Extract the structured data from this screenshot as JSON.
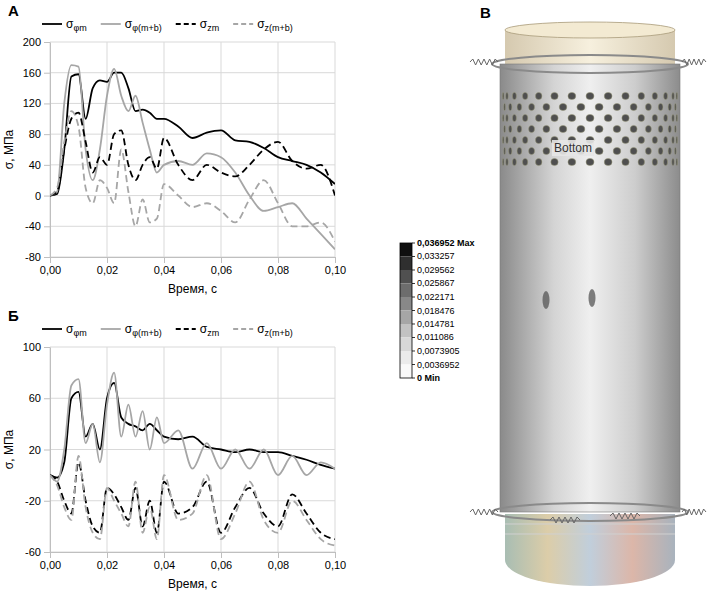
{
  "chart_data": [
    {
      "type": "line",
      "panel": "А",
      "x": [
        0,
        0.0025,
        0.005,
        0.0075,
        0.01,
        0.0125,
        0.015,
        0.0175,
        0.02,
        0.0225,
        0.025,
        0.0275,
        0.03,
        0.0325,
        0.035,
        0.0375,
        0.04,
        0.045,
        0.05,
        0.055,
        0.06,
        0.065,
        0.07,
        0.075,
        0.08,
        0.085,
        0.09,
        0.095,
        0.1
      ],
      "series": [
        {
          "name": "σφm",
          "color": "#000000",
          "line_style": "solid",
          "values": [
            0,
            2,
            60,
            155,
            158,
            100,
            140,
            150,
            148,
            160,
            160,
            140,
            110,
            112,
            108,
            100,
            100,
            90,
            75,
            82,
            85,
            72,
            70,
            62,
            50,
            45,
            40,
            30,
            15
          ]
        },
        {
          "name": "σφ(m+b)",
          "color": "#a6a6a6",
          "line_style": "solid",
          "values": [
            0,
            5,
            120,
            170,
            168,
            60,
            20,
            60,
            130,
            165,
            130,
            110,
            130,
            95,
            60,
            30,
            40,
            45,
            40,
            55,
            50,
            30,
            0,
            -20,
            -15,
            -10,
            -30,
            -50,
            -70
          ]
        },
        {
          "name": "σzm",
          "color": "#000000",
          "line_style": "dashed",
          "values": [
            0,
            5,
            60,
            100,
            108,
            70,
            30,
            50,
            40,
            80,
            85,
            40,
            20,
            40,
            50,
            35,
            75,
            40,
            20,
            40,
            30,
            25,
            40,
            60,
            70,
            45,
            35,
            40,
            0
          ]
        },
        {
          "name": "σz(m+b)",
          "color": "#a6a6a6",
          "line_style": "dashed",
          "values": [
            0,
            10,
            70,
            110,
            90,
            10,
            -10,
            20,
            10,
            -10,
            60,
            5,
            -40,
            -5,
            -35,
            -30,
            15,
            0,
            -15,
            -10,
            -20,
            -35,
            -5,
            20,
            -10,
            -40,
            -40,
            -35,
            -60
          ]
        }
      ],
      "xlim": [
        0,
        0.1
      ],
      "xticks": [
        {
          "value": 0,
          "label": "0,00"
        },
        {
          "value": 0.02,
          "label": "0,02"
        },
        {
          "value": 0.04,
          "label": "0,04"
        },
        {
          "value": 0.06,
          "label": "0,06"
        },
        {
          "value": 0.08,
          "label": "0,08"
        },
        {
          "value": 0.1,
          "label": "0,10"
        }
      ],
      "ylim": [
        -80,
        200
      ],
      "yticks": [
        -80,
        -40,
        0,
        40,
        80,
        120,
        160,
        200
      ],
      "x_label": "Время, с",
      "y_label": "σ, МПа",
      "grid": true,
      "legend": "top"
    },
    {
      "type": "line",
      "panel": "Б",
      "x": [
        0,
        0.0025,
        0.005,
        0.0075,
        0.01,
        0.0125,
        0.015,
        0.0175,
        0.02,
        0.0225,
        0.025,
        0.0275,
        0.03,
        0.0325,
        0.035,
        0.0375,
        0.04,
        0.045,
        0.05,
        0.055,
        0.06,
        0.065,
        0.07,
        0.075,
        0.08,
        0.085,
        0.09,
        0.095,
        0.1
      ],
      "series": [
        {
          "name": "σφm",
          "color": "#000000",
          "line_style": "solid",
          "values": [
            0,
            -2,
            10,
            60,
            65,
            30,
            40,
            20,
            60,
            72,
            45,
            40,
            38,
            35,
            40,
            35,
            30,
            28,
            30,
            22,
            20,
            18,
            20,
            18,
            18,
            15,
            12,
            8,
            5
          ]
        },
        {
          "name": "σφ(m+b)",
          "color": "#a6a6a6",
          "line_style": "solid",
          "values": [
            0,
            -5,
            20,
            70,
            75,
            25,
            40,
            10,
            55,
            80,
            30,
            55,
            30,
            50,
            20,
            45,
            25,
            35,
            5,
            25,
            5,
            20,
            5,
            20,
            0,
            15,
            0,
            10,
            5
          ]
        },
        {
          "name": "σzm",
          "color": "#000000",
          "line_style": "dashed",
          "values": [
            0,
            -5,
            -20,
            -30,
            10,
            -20,
            -40,
            -45,
            -10,
            -15,
            -25,
            -35,
            -10,
            -40,
            -20,
            -45,
            -5,
            -30,
            -25,
            -5,
            -45,
            -25,
            -10,
            -30,
            -40,
            -15,
            -30,
            -45,
            -50
          ]
        },
        {
          "name": "σz(m+b)",
          "color": "#a6a6a6",
          "line_style": "dashed",
          "values": [
            0,
            -8,
            -25,
            -35,
            15,
            -25,
            -45,
            -50,
            -10,
            -20,
            -30,
            -40,
            -5,
            -45,
            -25,
            -50,
            0,
            -35,
            -30,
            0,
            -50,
            -30,
            -5,
            -35,
            -45,
            -20,
            -35,
            -50,
            -55
          ]
        }
      ],
      "xlim": [
        0,
        0.1
      ],
      "xticks": [
        {
          "value": 0,
          "label": "0,00"
        },
        {
          "value": 0.02,
          "label": "0,02"
        },
        {
          "value": 0.04,
          "label": "0,04"
        },
        {
          "value": 0.06,
          "label": "0,06"
        },
        {
          "value": 0.08,
          "label": "0,08"
        },
        {
          "value": 0.1,
          "label": "0,10"
        }
      ],
      "ylim": [
        -60,
        100
      ],
      "yticks": [
        -60,
        -20,
        20,
        60,
        100
      ],
      "x_label": "Время, с",
      "y_label": "σ, МПа",
      "grid": true,
      "legend": "top"
    },
    {
      "type": "contour",
      "panel": "В",
      "annotations": [
        "Bottom"
      ],
      "colorbar_lim": [
        0,
        0.036952
      ],
      "colorbar_ticks": [
        {
          "value": 0.036952,
          "label": "0,036952 Max"
        },
        {
          "value": 0.033257,
          "label": "0,033257"
        },
        {
          "value": 0.029562,
          "label": "0,029562"
        },
        {
          "value": 0.025867,
          "label": "0,025867"
        },
        {
          "value": 0.022171,
          "label": "0,022171"
        },
        {
          "value": 0.018476,
          "label": "0,018476"
        },
        {
          "value": 0.014781,
          "label": "0,014781"
        },
        {
          "value": 0.011086,
          "label": "0,011086"
        },
        {
          "value": 0.0073905,
          "label": "0,0073905"
        },
        {
          "value": 0.0036952,
          "label": "0,0036952"
        },
        {
          "value": 0,
          "label": "0 Min"
        }
      ]
    }
  ]
}
